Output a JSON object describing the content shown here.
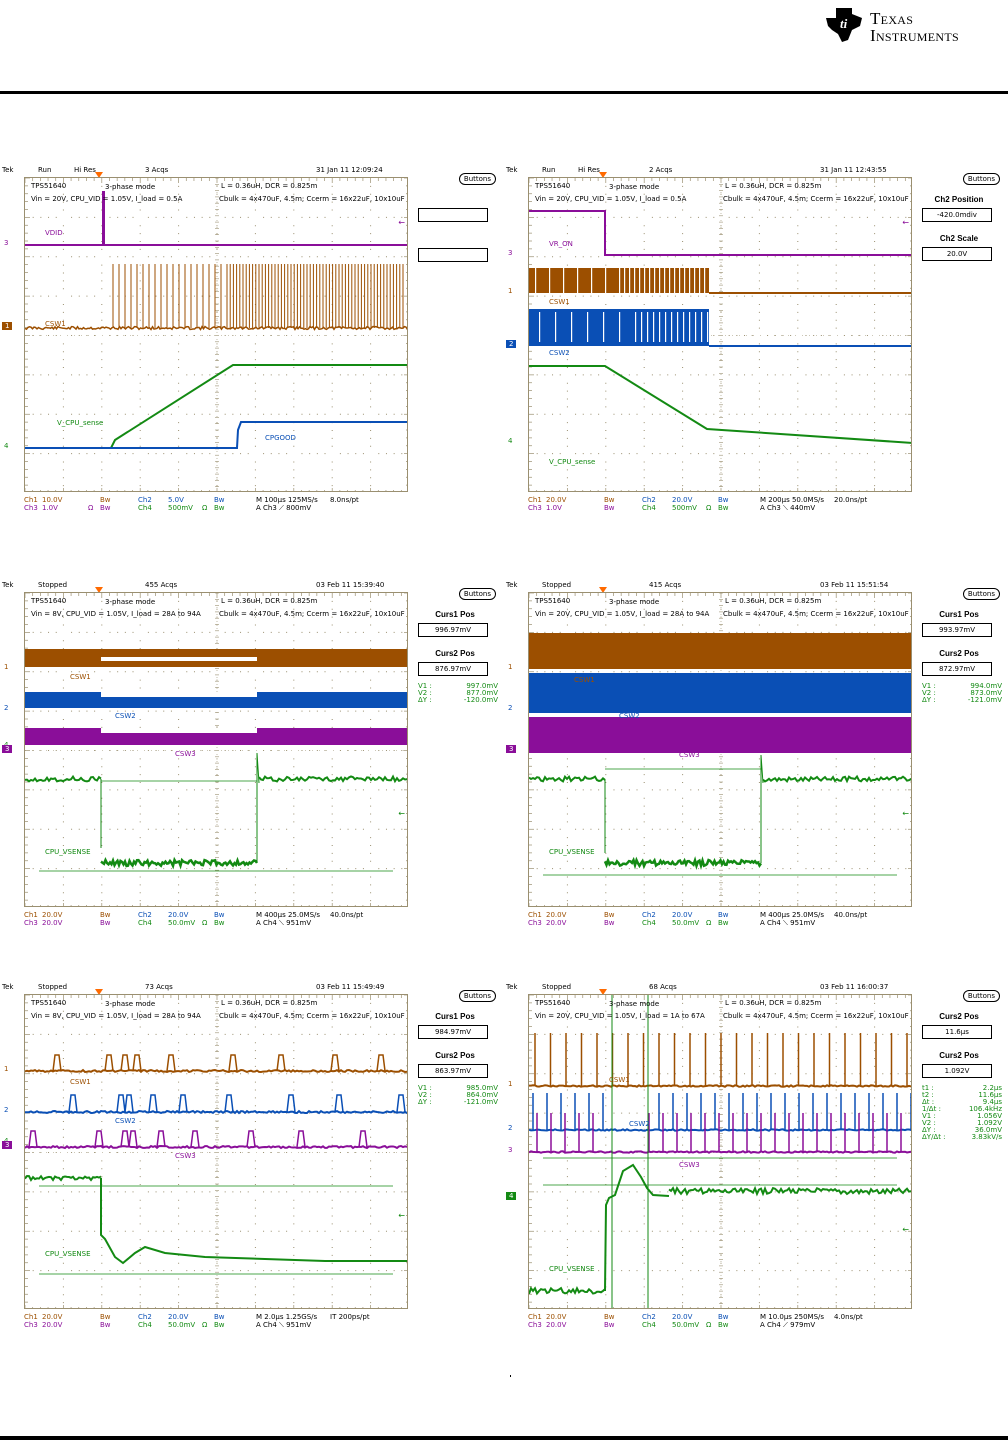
{
  "document": {
    "logo_text_line1": "Texas",
    "logo_text_line2": "Instruments",
    "colors": {
      "ch1": "#9c4f00",
      "ch2": "#0a4fb5",
      "ch3": "#8a0e99",
      "ch4": "#138a13",
      "grid": "#9a8f70",
      "trigger_marker": "#ff6a00",
      "readout": "#1a8a1a"
    }
  },
  "scopes": [
    {
      "id": "startup",
      "header": {
        "brand": "Tek",
        "state": "Run",
        "mode": "Hi Res",
        "acqs": "3 Acqs",
        "timestamp": "31 Jan 11 12:09:24"
      },
      "info": {
        "device": "TPS51640",
        "phase_mode": "3-phase mode",
        "conditions": "Vin = 20V, CPU_VID = 1.05V, I_load = 0.5A",
        "inductor": "L = 0.36uH, DCR = 0.825m",
        "caps": "Cbulk = 4x470uF, 4.5m;   Ccerm = 16x22uF, 10x10uF"
      },
      "side": {
        "buttons_label": "Buttons",
        "title1": "",
        "value1": "",
        "title2": "",
        "value2": "",
        "readouts": []
      },
      "trace_labels": [
        {
          "text": "VDID",
          "ch": "ch3"
        },
        {
          "text": "CSW1",
          "ch": "ch1"
        },
        {
          "text": "V_CPU_sense",
          "ch": "ch4"
        },
        {
          "text": "CPGOOD",
          "ch": "ch2"
        }
      ],
      "channel_markers": [
        {
          "text": "3",
          "ch": "ch3",
          "boxed": false
        },
        {
          "text": "1",
          "ch": "ch1",
          "boxed": true
        },
        {
          "text": "4",
          "ch": "ch4",
          "boxed": false
        }
      ],
      "footer": {
        "ch1": "Ch1",
        "ch1_scale": "10.0V",
        "ch1_bw": "Bw",
        "ch2": "Ch2",
        "ch2_scale": "5.0V",
        "ch2_bw": "Bw",
        "ch3": "Ch3",
        "ch3_scale": "1.0V",
        "ch3_ohm": "Ω",
        "ch3_bw": "Bw",
        "ch4": "Ch4",
        "ch4_scale": "500mV",
        "ch4_ohm": "Ω",
        "ch4_bw": "Bw",
        "timebase": "M 100µs 125MS/s",
        "resolution": "8.0ns/pt",
        "trigger": "A  Ch3  ⟋  800mV"
      }
    },
    {
      "id": "shutdown",
      "header": {
        "brand": "Tek",
        "state": "Run",
        "mode": "Hi Res",
        "acqs": "2 Acqs",
        "timestamp": "31 Jan 11 12:43:55"
      },
      "info": {
        "device": "TPS51640",
        "phase_mode": "3-phase mode",
        "conditions": "Vin = 20V, CPU_VID = 1.05V, I_load = 0.5A",
        "inductor": "L = 0.36uH, DCR = 0.825m",
        "caps": "Cbulk = 4x470uF, 4.5m;   Ccerm = 16x22uF, 10x10uF"
      },
      "side": {
        "buttons_label": "Buttons",
        "title1": "Ch2 Position",
        "value1": "-420.0mdiv",
        "title2": "Ch2 Scale",
        "value2": "20.0V",
        "readouts": []
      },
      "trace_labels": [
        {
          "text": "VR_ON",
          "ch": "ch3"
        },
        {
          "text": "CSW1",
          "ch": "ch1"
        },
        {
          "text": "CSW2",
          "ch": "ch2"
        },
        {
          "text": "V_CPU_sense",
          "ch": "ch4"
        }
      ],
      "channel_markers": [
        {
          "text": "3",
          "ch": "ch3",
          "boxed": false
        },
        {
          "text": "1",
          "ch": "ch1",
          "boxed": false
        },
        {
          "text": "2",
          "ch": "ch2",
          "boxed": true
        },
        {
          "text": "4",
          "ch": "ch4",
          "boxed": false
        }
      ],
      "footer": {
        "ch1": "Ch1",
        "ch1_scale": "20.0V",
        "ch1_bw": "Bw",
        "ch2": "Ch2",
        "ch2_scale": "20.0V",
        "ch2_bw": "Bw",
        "ch3": "Ch3",
        "ch3_scale": "1.0V",
        "ch3_ohm": "",
        "ch3_bw": "Bw",
        "ch4": "Ch4",
        "ch4_scale": "500mV",
        "ch4_ohm": "Ω",
        "ch4_bw": "Bw",
        "timebase": "M 200µs 50.0MS/s",
        "resolution": "20.0ns/pt",
        "trigger": "A  Ch3  ⟍  440mV"
      }
    },
    {
      "id": "load-step-8v",
      "header": {
        "brand": "Tek",
        "state": "Stopped",
        "mode": "",
        "acqs": "455 Acqs",
        "timestamp": "03 Feb 11 15:39:40"
      },
      "info": {
        "device": "TPS51640",
        "phase_mode": "3-phase mode",
        "conditions": "Vin = 8V, CPU_VID = 1.05V, I_load = 28A to 94A",
        "inductor": "L = 0.36uH, DCR = 0.825m",
        "caps": "Cbulk = 4x470uF, 4.5m;   Ccerm = 16x22uF, 10x10uF"
      },
      "side": {
        "buttons_label": "Buttons",
        "title1": "Curs1 Pos",
        "value1": "996.97mV",
        "title2": "Curs2 Pos",
        "value2": "876.97mV",
        "readouts": [
          {
            "k": "V1 :",
            "v": "997.0mV"
          },
          {
            "k": "V2 :",
            "v": "877.0mV"
          },
          {
            "k": "ΔY :",
            "v": "-120.0mV"
          }
        ]
      },
      "trace_labels": [
        {
          "text": "CSW1",
          "ch": "ch1"
        },
        {
          "text": "CSW2",
          "ch": "ch2"
        },
        {
          "text": "CSW3",
          "ch": "ch3"
        },
        {
          "text": "CPU_VSENSE",
          "ch": "ch4"
        }
      ],
      "channel_markers": [
        {
          "text": "1",
          "ch": "ch1",
          "boxed": false
        },
        {
          "text": "2",
          "ch": "ch2",
          "boxed": false
        },
        {
          "text": "4",
          "ch": "ch4",
          "boxed": false
        },
        {
          "text": "3",
          "ch": "ch3",
          "boxed": true
        }
      ],
      "footer": {
        "ch1": "Ch1",
        "ch1_scale": "20.0V",
        "ch1_bw": "Bw",
        "ch2": "Ch2",
        "ch2_scale": "20.0V",
        "ch2_bw": "Bw",
        "ch3": "Ch3",
        "ch3_scale": "20.0V",
        "ch3_ohm": "",
        "ch3_bw": "Bw",
        "ch4": "Ch4",
        "ch4_scale": "50.0mV",
        "ch4_ohm": "Ω",
        "ch4_bw": "Bw",
        "timebase": "M 400µs 25.0MS/s",
        "resolution": "40.0ns/pt",
        "trigger": "A  Ch4  ⟍  951mV"
      }
    },
    {
      "id": "load-step-20v",
      "header": {
        "brand": "Tek",
        "state": "Stopped",
        "mode": "",
        "acqs": "415 Acqs",
        "timestamp": "03 Feb 11 15:51:54"
      },
      "info": {
        "device": "TPS51640",
        "phase_mode": "3-phase mode",
        "conditions": "Vin = 20V, CPU_VID = 1.05V, I_load = 28A to 94A",
        "inductor": "L = 0.36uH, DCR = 0.825m",
        "caps": "Cbulk = 4x470uF, 4.5m;   Ccerm = 16x22uF, 10x10uF"
      },
      "side": {
        "buttons_label": "Buttons",
        "title1": "Curs1 Pos",
        "value1": "993.97mV",
        "title2": "Curs2 Pos",
        "value2": "872.97mV",
        "readouts": [
          {
            "k": "V1 :",
            "v": "994.0mV"
          },
          {
            "k": "V2 :",
            "v": "873.0mV"
          },
          {
            "k": "ΔY :",
            "v": "-121.0mV"
          }
        ]
      },
      "trace_labels": [
        {
          "text": "CSW1",
          "ch": "ch1"
        },
        {
          "text": "CSW2",
          "ch": "ch2"
        },
        {
          "text": "CSW3",
          "ch": "ch3"
        },
        {
          "text": "CPU_VSENSE",
          "ch": "ch4"
        }
      ],
      "channel_markers": [
        {
          "text": "1",
          "ch": "ch1",
          "boxed": false
        },
        {
          "text": "2",
          "ch": "ch2",
          "boxed": false
        },
        {
          "text": "3",
          "ch": "ch3",
          "boxed": true
        }
      ],
      "footer": {
        "ch1": "Ch1",
        "ch1_scale": "20.0V",
        "ch1_bw": "Bw",
        "ch2": "Ch2",
        "ch2_scale": "20.0V",
        "ch2_bw": "Bw",
        "ch3": "Ch3",
        "ch3_scale": "20.0V",
        "ch3_ohm": "",
        "ch3_bw": "Bw",
        "ch4": "Ch4",
        "ch4_scale": "50.0mV",
        "ch4_ohm": "Ω",
        "ch4_bw": "Bw",
        "timebase": "M 400µs 25.0MS/s",
        "resolution": "40.0ns/pt",
        "trigger": "A  Ch4  ⟍  951mV"
      }
    },
    {
      "id": "load-step-zoom",
      "header": {
        "brand": "Tek",
        "state": "Stopped",
        "mode": "",
        "acqs": "73 Acqs",
        "timestamp": "03 Feb 11 15:49:49"
      },
      "info": {
        "device": "TPS51640",
        "phase_mode": "3-phase mode",
        "conditions": "Vin = 8V, CPU_VID = 1.05V, I_load = 28A to 94A",
        "inductor": "L = 0.36uH, DCR = 0.825m",
        "caps": "Cbulk = 4x470uF, 4.5m;   Ccerm = 16x22uF, 10x10uF"
      },
      "side": {
        "buttons_label": "Buttons",
        "title1": "Curs1 Pos",
        "value1": "984.97mV",
        "title2": "Curs2 Pos",
        "value2": "863.97mV",
        "readouts": [
          {
            "k": "V1 :",
            "v": "985.0mV"
          },
          {
            "k": "V2 :",
            "v": "864.0mV"
          },
          {
            "k": "ΔY :",
            "v": "-121.0mV"
          }
        ]
      },
      "trace_labels": [
        {
          "text": "CSW1",
          "ch": "ch1"
        },
        {
          "text": "CSW2",
          "ch": "ch2"
        },
        {
          "text": "CSW3",
          "ch": "ch3"
        },
        {
          "text": "CPU_VSENSE",
          "ch": "ch4"
        }
      ],
      "channel_markers": [
        {
          "text": "1",
          "ch": "ch1",
          "boxed": false
        },
        {
          "text": "2",
          "ch": "ch2",
          "boxed": false
        },
        {
          "text": "4",
          "ch": "ch4",
          "boxed": false
        },
        {
          "text": "3",
          "ch": "ch3",
          "boxed": true
        }
      ],
      "footer": {
        "ch1": "Ch1",
        "ch1_scale": "20.0V",
        "ch1_bw": "Bw",
        "ch2": "Ch2",
        "ch2_scale": "20.0V",
        "ch2_bw": "Bw",
        "ch3": "Ch3",
        "ch3_scale": "20.0V",
        "ch3_ohm": "",
        "ch3_bw": "Bw",
        "ch4": "Ch4",
        "ch4_scale": "50.0mV",
        "ch4_ohm": "Ω",
        "ch4_bw": "Bw",
        "timebase": "M 2.0µs 1.25GS/s",
        "resolution": "IT 200ps/pt",
        "trigger": "A  Ch4  ⟍  951mV"
      }
    },
    {
      "id": "load-release",
      "header": {
        "brand": "Tek",
        "state": "Stopped",
        "mode": "",
        "acqs": "68 Acqs",
        "timestamp": "03 Feb 11 16:00:37"
      },
      "info": {
        "device": "TPS51640",
        "phase_mode": "3-phase mode",
        "conditions": "Vin = 20V, CPU_VID = 1.05V, I_load = 1A to 67A",
        "inductor": "L = 0.36uH, DCR = 0.825m",
        "caps": "Cbulk = 4x470uF, 4.5m;   Ccerm = 16x22uF, 10x10uF"
      },
      "side": {
        "buttons_label": "Buttons",
        "title1": "Curs2 Pos",
        "value1": "11.6µs",
        "title2": "Curs2 Pos",
        "value2": "1.092V",
        "readouts": [
          {
            "k": "t1 :",
            "v": "2.2µs"
          },
          {
            "k": "t2 :",
            "v": "11.6µs"
          },
          {
            "k": "Δt :",
            "v": "9.4µs"
          },
          {
            "k": "1/Δt :",
            "v": "106.4kHz"
          },
          {
            "k": "V1 :",
            "v": "1.056V"
          },
          {
            "k": "V2 :",
            "v": "1.092V"
          },
          {
            "k": "ΔY :",
            "v": "36.0mV"
          },
          {
            "k": "ΔY/Δt :",
            "v": "3.83kV/s"
          }
        ]
      },
      "trace_labels": [
        {
          "text": "CSW1",
          "ch": "ch1"
        },
        {
          "text": "CSW2",
          "ch": "ch2"
        },
        {
          "text": "CSW3",
          "ch": "ch3"
        },
        {
          "text": "CPU_VSENSE",
          "ch": "ch4"
        }
      ],
      "channel_markers": [
        {
          "text": "1",
          "ch": "ch1",
          "boxed": false
        },
        {
          "text": "2",
          "ch": "ch2",
          "boxed": false
        },
        {
          "text": "3",
          "ch": "ch3",
          "boxed": false
        },
        {
          "text": "4",
          "ch": "ch4",
          "boxed": true
        }
      ],
      "footer": {
        "ch1": "Ch1",
        "ch1_scale": "20.0V",
        "ch1_bw": "Bw",
        "ch2": "Ch2",
        "ch2_scale": "20.0V",
        "ch2_bw": "Bw",
        "ch3": "Ch3",
        "ch3_scale": "20.0V",
        "ch3_ohm": "",
        "ch3_bw": "Bw",
        "ch4": "Ch4",
        "ch4_scale": "50.0mV",
        "ch4_ohm": "Ω",
        "ch4_bw": "Bw",
        "timebase": "M 10.0µs 250MS/s",
        "resolution": "4.0ns/pt",
        "trigger": "A  Ch4  ⟋  979mV"
      }
    }
  ]
}
